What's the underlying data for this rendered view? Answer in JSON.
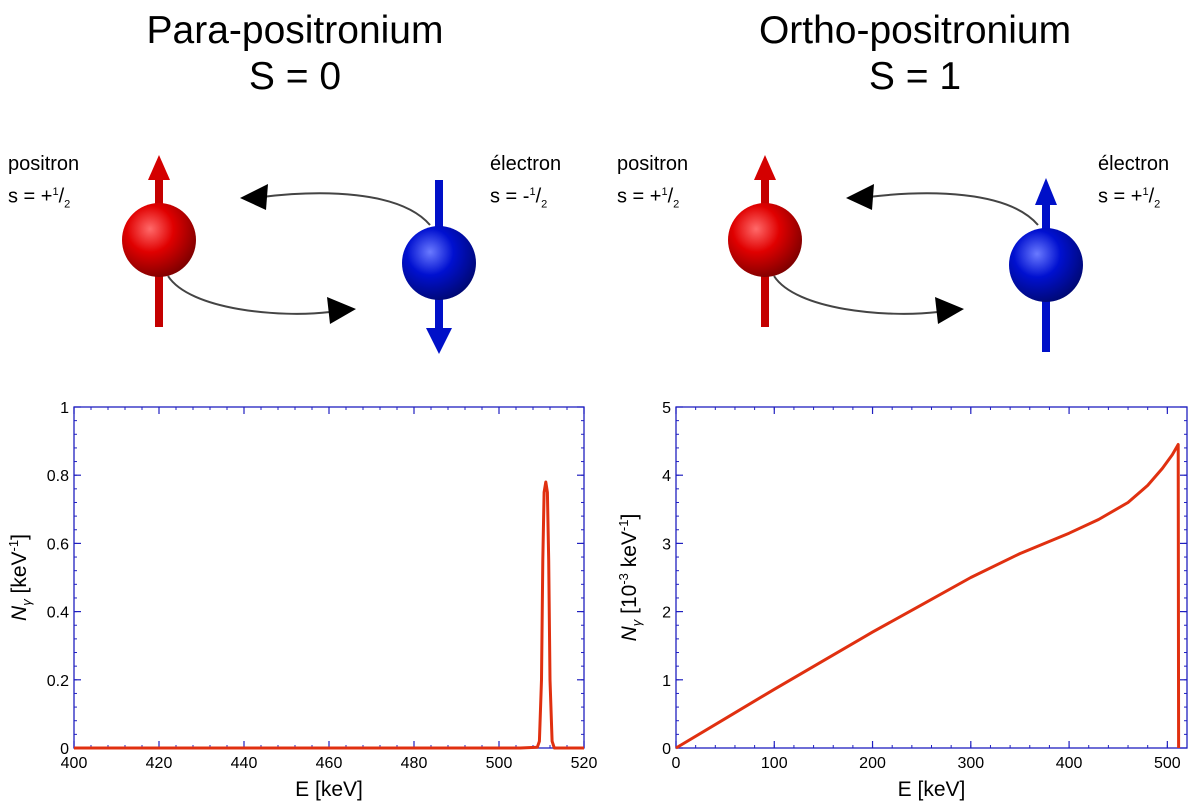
{
  "panels": {
    "left": {
      "title_line1": "Para-positronium",
      "title_line2": "S = 0",
      "positron": {
        "name": "positron",
        "spin_prefix": "s = +",
        "spin_num": "1",
        "spin_den": "2"
      },
      "electron": {
        "name": "électron",
        "spin_prefix": "s = -",
        "spin_num": "1",
        "spin_den": "2"
      }
    },
    "right": {
      "title_line1": "Ortho-positronium",
      "title_line2": "S = 1",
      "positron": {
        "name": "positron",
        "spin_prefix": "s = +",
        "spin_num": "1",
        "spin_den": "2"
      },
      "electron": {
        "name": "électron",
        "spin_prefix": "s = +",
        "spin_num": "1",
        "spin_den": "2"
      }
    }
  },
  "colors": {
    "positron": "#d40000",
    "electron": "#0010c8",
    "curve": "#e03010",
    "axis": "#2020c0"
  },
  "chart_data": [
    {
      "type": "line",
      "xlabel": "E [keV]",
      "ylabel_main": "N",
      "ylabel_sub": "γ",
      "ylabel_rest": " [keV",
      "ylabel_sup": "-1",
      "ylabel_end": "]",
      "xlim": [
        400,
        520
      ],
      "ylim": [
        0,
        1
      ],
      "xticks": [
        "400",
        "420",
        "440",
        "460",
        "480",
        "500",
        "520"
      ],
      "yticks": [
        "0",
        "0.2",
        "0.4",
        "0.6",
        "0.8",
        "1"
      ],
      "xtick_values": [
        400,
        420,
        440,
        460,
        480,
        500,
        520
      ],
      "ytick_values": [
        0,
        0.2,
        0.4,
        0.6,
        0.8,
        1
      ],
      "series": [
        {
          "x": [
            400,
            505,
            509,
            509.5,
            510,
            510.3,
            510.6,
            511,
            511.4,
            511.7,
            512,
            512.5,
            513,
            520
          ],
          "y": [
            0,
            0,
            0.002,
            0.02,
            0.2,
            0.55,
            0.75,
            0.78,
            0.75,
            0.55,
            0.2,
            0.02,
            0,
            0
          ]
        }
      ]
    },
    {
      "type": "line",
      "xlabel": "E [keV]",
      "ylabel_main": "N",
      "ylabel_sub": "γ",
      "ylabel_rest": " [10",
      "ylabel_sup": "-3",
      "ylabel_end": " keV",
      "ylabel_sup2": "-1",
      "ylabel_end2": "]",
      "xlim": [
        0,
        520
      ],
      "ylim": [
        0,
        5
      ],
      "xticks": [
        "0",
        "100",
        "200",
        "300",
        "400",
        "500"
      ],
      "yticks": [
        "0",
        "1",
        "2",
        "3",
        "4",
        "5"
      ],
      "xtick_values": [
        0,
        100,
        200,
        300,
        400,
        500
      ],
      "ytick_values": [
        0,
        1,
        2,
        3,
        4,
        5
      ],
      "series": [
        {
          "x": [
            0,
            50,
            100,
            150,
            200,
            250,
            300,
            350,
            400,
            430,
            460,
            480,
            495,
            505,
            511,
            511.5,
            511.5
          ],
          "y": [
            0,
            0.43,
            0.86,
            1.28,
            1.7,
            2.1,
            2.5,
            2.85,
            3.15,
            3.35,
            3.6,
            3.85,
            4.1,
            4.3,
            4.45,
            0,
            0
          ]
        }
      ]
    }
  ]
}
